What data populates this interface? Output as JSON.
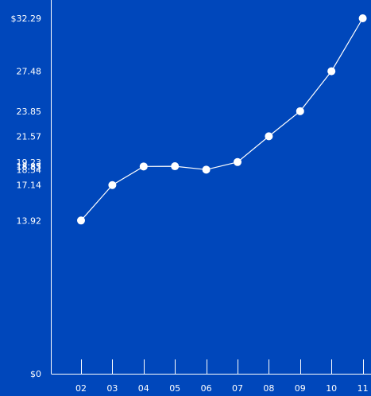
{
  "chart_data": {
    "type": "line",
    "title": "",
    "xlabel": "",
    "ylabel": "",
    "categories": [
      "02",
      "03",
      "04",
      "05",
      "06",
      "07",
      "08",
      "09",
      "10",
      "11"
    ],
    "series": [
      {
        "values": [
          13.92,
          17.14,
          18.83,
          18.85,
          18.54,
          19.23,
          21.57,
          23.85,
          27.48,
          32.29
        ]
      }
    ],
    "ylim": [
      0,
      32.29
    ],
    "y_tick_labels": [
      {
        "value": 32.29,
        "label": "$32.29"
      },
      {
        "value": 27.48,
        "label": "27.48"
      },
      {
        "value": 23.85,
        "label": "23.85"
      },
      {
        "value": 21.57,
        "label": "21.57"
      },
      {
        "value": 19.23,
        "label": "19.23"
      },
      {
        "value": 18.85,
        "label": "18.85"
      },
      {
        "value": 18.83,
        "label": "18.83"
      },
      {
        "value": 18.54,
        "label": "18.54"
      },
      {
        "value": 17.14,
        "label": "17.14"
      },
      {
        "value": 13.92,
        "label": "13.92"
      },
      {
        "value": 0,
        "label": "$0"
      }
    ],
    "grid": false,
    "colors": {
      "background": "#0047bb",
      "line": "#ffffff",
      "marker": "#ffffff",
      "axis": "#ffffff",
      "text": "#ffffff"
    }
  }
}
